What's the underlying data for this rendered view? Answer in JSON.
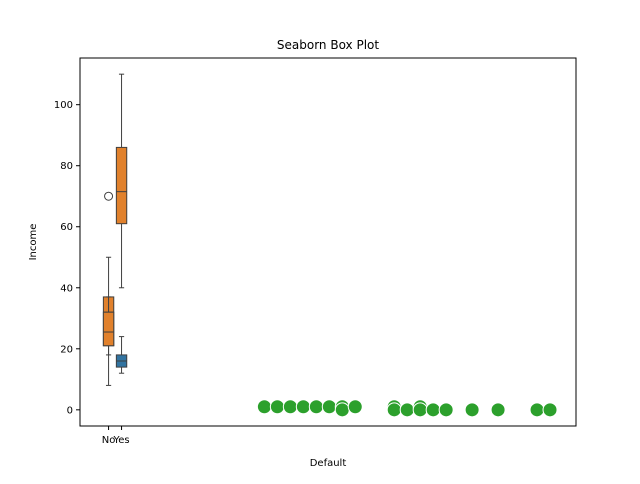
{
  "chart_data": [
    {
      "type": "box",
      "title": "Seaborn Box Plot",
      "xlabel": "Default",
      "ylabel": "Income",
      "xlim": [
        -2.2,
        36
      ],
      "ylim": [
        -5.3,
        115.3
      ],
      "xticks": [
        {
          "value": 0,
          "label": "No"
        },
        {
          "value": 1,
          "label": "Yes"
        }
      ],
      "yticks": [
        0,
        20,
        40,
        60,
        80,
        100
      ],
      "boxes": [
        {
          "x": 0,
          "color": "#e1812c",
          "whislo": 18,
          "q1": 21,
          "med": 32,
          "q3": 37,
          "whishi": 50,
          "fliers": [
            70
          ]
        },
        {
          "x": 0,
          "color": "#e1812c",
          "whislo": 8,
          "q1": 21,
          "med": 25.5,
          "q3": 32,
          "whishi": 37
        },
        {
          "x": 1,
          "color": "#e1812c",
          "whislo": 40,
          "q1": 61,
          "med": 71.5,
          "q3": 86,
          "whishi": 110
        },
        {
          "x": 1,
          "color": "#3274a1",
          "whislo": 12,
          "q1": 14,
          "med": 16,
          "q3": 18,
          "whishi": 24
        }
      ]
    },
    {
      "type": "scatter",
      "color": "#2ca02c",
      "x": [
        12,
        13,
        14,
        15,
        16,
        17,
        18,
        18,
        19,
        22,
        22,
        23,
        24,
        24,
        25,
        26,
        28,
        30,
        33,
        34
      ],
      "values": [
        1,
        1,
        1,
        1,
        1,
        1,
        1,
        0,
        1,
        1,
        0,
        0,
        1,
        0,
        0,
        0,
        0,
        0,
        0,
        0
      ]
    }
  ]
}
